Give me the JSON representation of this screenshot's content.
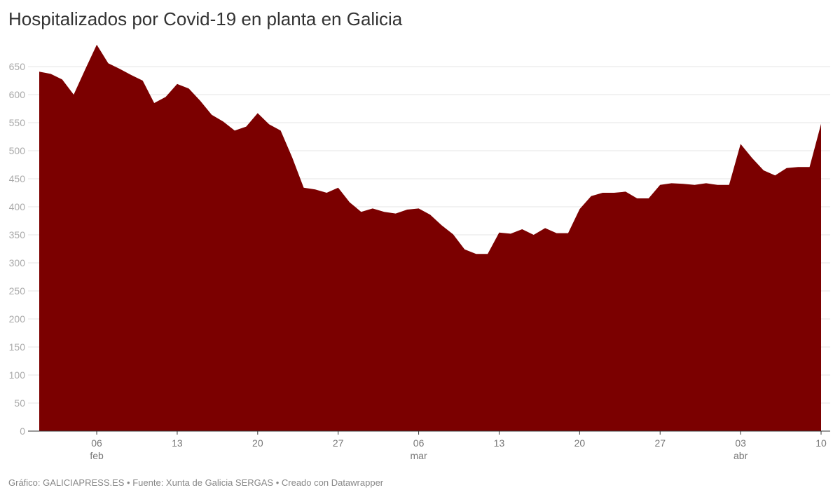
{
  "title": "Hospitalizados por Covid-19 en planta en Galicia",
  "footer": "Gráfico: GALICIAPRESS.ES • Fuente: Xunta de Galicia SERGAS • Creado con Datawrapper",
  "chart_data": {
    "type": "area",
    "title": "Hospitalizados por Covid-19 en planta en Galicia",
    "xlabel": "",
    "ylabel": "",
    "color": "#7b0000",
    "grid": true,
    "ylim": [
      0,
      650
    ],
    "yticks": [
      0,
      50,
      100,
      150,
      200,
      250,
      300,
      350,
      400,
      450,
      500,
      550,
      600,
      650
    ],
    "x_start": "2021-02-01",
    "x_end": "2021-04-10",
    "xticks": [
      {
        "date": "2021-02-06",
        "label": "06",
        "month": "feb"
      },
      {
        "date": "2021-02-13",
        "label": "13",
        "month": ""
      },
      {
        "date": "2021-02-20",
        "label": "20",
        "month": ""
      },
      {
        "date": "2021-02-27",
        "label": "27",
        "month": ""
      },
      {
        "date": "2021-03-06",
        "label": "06",
        "month": "mar"
      },
      {
        "date": "2021-03-13",
        "label": "13",
        "month": ""
      },
      {
        "date": "2021-03-20",
        "label": "20",
        "month": ""
      },
      {
        "date": "2021-03-27",
        "label": "27",
        "month": ""
      },
      {
        "date": "2021-04-03",
        "label": "03",
        "month": "abr"
      },
      {
        "date": "2021-04-10",
        "label": "10",
        "month": ""
      }
    ],
    "values": [
      641,
      637,
      627,
      600,
      645,
      689,
      656,
      646,
      635,
      625,
      585,
      596,
      619,
      611,
      589,
      564,
      552,
      536,
      543,
      567,
      547,
      536,
      488,
      434,
      431,
      425,
      434,
      408,
      391,
      397,
      391,
      388,
      395,
      397,
      386,
      367,
      351,
      324,
      316,
      316,
      354,
      352,
      360,
      350,
      362,
      353,
      353,
      396,
      419,
      425,
      425,
      427,
      415,
      415,
      439,
      442,
      441,
      439,
      442,
      439,
      439,
      512,
      487,
      465,
      456,
      469,
      471,
      471,
      548
    ]
  }
}
